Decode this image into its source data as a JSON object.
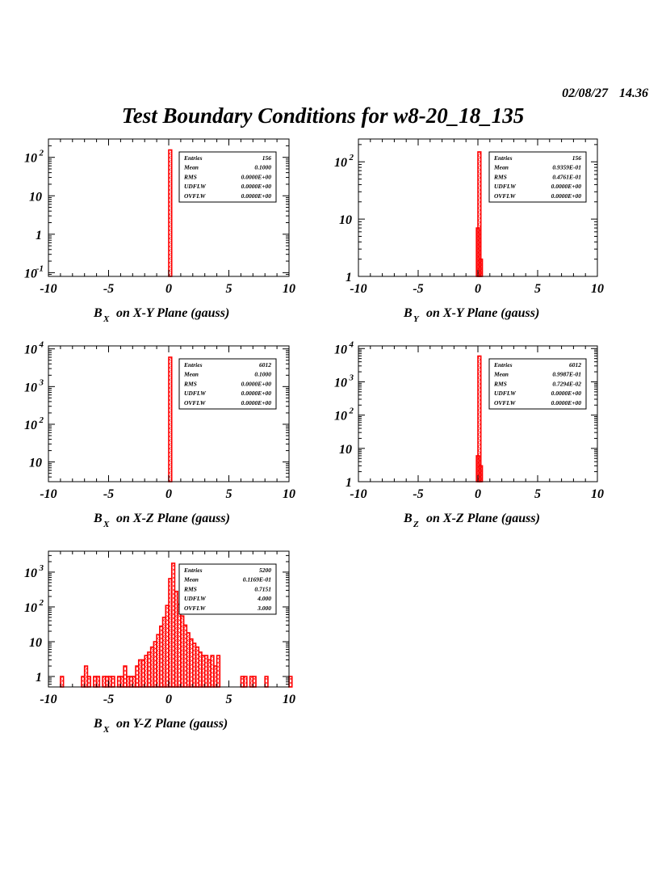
{
  "header": {
    "date": "02/08/27",
    "time": "14.36",
    "title": "Test Boundary Conditions for w8-20_18_135"
  },
  "colors": {
    "hist": "#ff0000",
    "frame": "#000000"
  },
  "chart_data": [
    {
      "type": "bar",
      "id": "p1",
      "xlabel_main": "B",
      "xlabel_sub": "X",
      "xlabel_rest": "on X-Y Plane (gauss)",
      "xlim": [
        -10,
        10
      ],
      "yscale": "log",
      "ylim": [
        0.08,
        300
      ],
      "yticks": [
        {
          "v": 0.1,
          "base": "10",
          "exp": "-1"
        },
        {
          "v": 1,
          "base": "1",
          "exp": ""
        },
        {
          "v": 10,
          "base": "10",
          "exp": ""
        },
        {
          "v": 100,
          "base": "10",
          "exp": "2"
        }
      ],
      "xticks": [
        "-10",
        "-5",
        "0",
        "5",
        "10"
      ],
      "bins": [
        [
          0,
          156
        ]
      ],
      "binwidth": 0.25,
      "stats": [
        [
          "Entries",
          "156"
        ],
        [
          "Mean",
          "0.1000"
        ],
        [
          "RMS",
          "0.0000E+00"
        ],
        [
          "UDFLW",
          "0.0000E+00"
        ],
        [
          "OVFLW",
          "0.0000E+00"
        ]
      ]
    },
    {
      "type": "bar",
      "id": "p2",
      "xlabel_main": "B",
      "xlabel_sub": "Y",
      "xlabel_rest": "on X-Y Plane (gauss)",
      "xlim": [
        -10,
        10
      ],
      "yscale": "log",
      "ylim": [
        1,
        250
      ],
      "yticks": [
        {
          "v": 1,
          "base": "1",
          "exp": ""
        },
        {
          "v": 10,
          "base": "10",
          "exp": ""
        },
        {
          "v": 100,
          "base": "10",
          "exp": "2"
        }
      ],
      "xticks": [
        "-10",
        "-5",
        "0",
        "5",
        "10"
      ],
      "bins": [
        [
          -0.125,
          7
        ],
        [
          0,
          149
        ],
        [
          0.125,
          2
        ]
      ],
      "binwidth": 0.25,
      "stats": [
        [
          "Entries",
          "156"
        ],
        [
          "Mean",
          "0.9359E-01"
        ],
        [
          "RMS",
          "0.4761E-01"
        ],
        [
          "UDFLW",
          "0.0000E+00"
        ],
        [
          "OVFLW",
          "0.0000E+00"
        ]
      ]
    },
    {
      "type": "bar",
      "id": "p3",
      "xlabel_main": "B",
      "xlabel_sub": "X",
      "xlabel_rest": "on X-Z Plane (gauss)",
      "xlim": [
        -10,
        10
      ],
      "yscale": "log",
      "ylim": [
        3,
        12000
      ],
      "yticks": [
        {
          "v": 10,
          "base": "10",
          "exp": ""
        },
        {
          "v": 100,
          "base": "10",
          "exp": "2"
        },
        {
          "v": 1000,
          "base": "10",
          "exp": "3"
        },
        {
          "v": 10000,
          "base": "10",
          "exp": "4"
        }
      ],
      "xticks": [
        "-10",
        "-5",
        "0",
        "5",
        "10"
      ],
      "bins": [
        [
          0,
          6012
        ]
      ],
      "binwidth": 0.25,
      "stats": [
        [
          "Entries",
          "6012"
        ],
        [
          "Mean",
          "0.1000"
        ],
        [
          "RMS",
          "0.0000E+00"
        ],
        [
          "UDFLW",
          "0.0000E+00"
        ],
        [
          "OVFLW",
          "0.0000E+00"
        ]
      ]
    },
    {
      "type": "bar",
      "id": "p4",
      "xlabel_main": "B",
      "xlabel_sub": "Z",
      "xlabel_rest": "on X-Z Plane (gauss)",
      "xlim": [
        -10,
        10
      ],
      "yscale": "log",
      "ylim": [
        1,
        12000
      ],
      "yticks": [
        {
          "v": 1,
          "base": "1",
          "exp": ""
        },
        {
          "v": 10,
          "base": "10",
          "exp": ""
        },
        {
          "v": 100,
          "base": "10",
          "exp": "2"
        },
        {
          "v": 1000,
          "base": "10",
          "exp": "3"
        },
        {
          "v": 10000,
          "base": "10",
          "exp": "4"
        }
      ],
      "xticks": [
        "-10",
        "-5",
        "0",
        "5",
        "10"
      ],
      "bins": [
        [
          -0.125,
          6
        ],
        [
          0,
          5950
        ],
        [
          0.125,
          3
        ]
      ],
      "binwidth": 0.25,
      "stats": [
        [
          "Entries",
          "6012"
        ],
        [
          "Mean",
          "0.9987E-01"
        ],
        [
          "RMS",
          "0.7294E-02"
        ],
        [
          "UDFLW",
          "0.0000E+00"
        ],
        [
          "OVFLW",
          "0.0000E+00"
        ]
      ]
    },
    {
      "type": "bar",
      "id": "p5",
      "xlabel_main": "B",
      "xlabel_sub": "X",
      "xlabel_rest": "on Y-Z Plane (gauss)",
      "xlim": [
        -10,
        10
      ],
      "yscale": "log",
      "ylim": [
        0.5,
        4000
      ],
      "yticks": [
        {
          "v": 1,
          "base": "1",
          "exp": ""
        },
        {
          "v": 10,
          "base": "10",
          "exp": ""
        },
        {
          "v": 100,
          "base": "10",
          "exp": "2"
        },
        {
          "v": 1000,
          "base": "10",
          "exp": "3"
        }
      ],
      "xticks": [
        "-10",
        "-5",
        "0",
        "5",
        "10"
      ],
      "bins": [
        [
          -9,
          1
        ],
        [
          -7.25,
          1
        ],
        [
          -7,
          2
        ],
        [
          -6.75,
          1
        ],
        [
          -6.25,
          1
        ],
        [
          -6,
          1
        ],
        [
          -5.5,
          1
        ],
        [
          -5.25,
          1
        ],
        [
          -5,
          1
        ],
        [
          -4.75,
          1
        ],
        [
          -4.25,
          1
        ],
        [
          -4,
          1
        ],
        [
          -3.75,
          2
        ],
        [
          -3.5,
          1
        ],
        [
          -3.25,
          1
        ],
        [
          -3,
          1
        ],
        [
          -2.75,
          2
        ],
        [
          -2.5,
          3
        ],
        [
          -2.25,
          3
        ],
        [
          -2,
          4
        ],
        [
          -1.75,
          5
        ],
        [
          -1.5,
          7
        ],
        [
          -1.25,
          10
        ],
        [
          -1,
          16
        ],
        [
          -0.75,
          28
        ],
        [
          -0.5,
          50
        ],
        [
          -0.25,
          110
        ],
        [
          0,
          650
        ],
        [
          0.25,
          1800
        ],
        [
          0.5,
          280
        ],
        [
          0.75,
          120
        ],
        [
          1,
          55
        ],
        [
          1.25,
          30
        ],
        [
          1.5,
          18
        ],
        [
          1.75,
          12
        ],
        [
          2,
          9
        ],
        [
          2.25,
          7
        ],
        [
          2.5,
          5
        ],
        [
          2.75,
          4
        ],
        [
          3,
          4
        ],
        [
          3.25,
          3
        ],
        [
          3.5,
          4
        ],
        [
          3.75,
          2
        ],
        [
          4,
          4
        ],
        [
          6,
          1
        ],
        [
          6.25,
          1
        ],
        [
          6.75,
          1
        ],
        [
          7,
          1
        ],
        [
          8,
          1
        ],
        [
          10,
          1
        ]
      ],
      "binwidth": 0.25,
      "stats": [
        [
          "Entries",
          "5200"
        ],
        [
          "Mean",
          "0.1169E-01"
        ],
        [
          "RMS",
          "0.7151"
        ],
        [
          "UDFLW",
          "4.000"
        ],
        [
          "OVFLW",
          "3.000"
        ]
      ]
    }
  ]
}
